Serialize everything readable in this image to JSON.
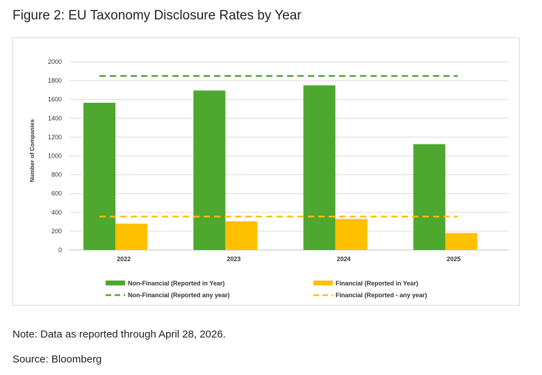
{
  "figure": {
    "title": "Figure 2: EU Taxonomy Disclosure Rates by Year",
    "note": "Note: Data as reported through April 28, 2026.",
    "source": "Source: Bloomberg"
  },
  "chart_data": {
    "type": "bar",
    "title": "",
    "xlabel": "",
    "ylabel": "Number of Companies",
    "ylim": [
      0,
      2000
    ],
    "yticks": [
      0,
      200,
      400,
      600,
      800,
      1000,
      1200,
      1400,
      1600,
      1800,
      2000
    ],
    "grid": true,
    "legend_position": "bottom",
    "categories": [
      "2022",
      "2023",
      "2024",
      "2025"
    ],
    "series": [
      {
        "name": "Non-Financial (Reported in Year)",
        "kind": "bar",
        "color": "#4ea72e",
        "values": [
          1565,
          1695,
          1750,
          1125
        ]
      },
      {
        "name": "Financial (Reported in Year)",
        "kind": "bar",
        "color": "#ffc000",
        "values": [
          280,
          305,
          330,
          180
        ]
      }
    ],
    "reference_lines": [
      {
        "name": "Non-Financial (Reported any year)",
        "kind": "dashed-line",
        "color": "#4ea72e",
        "value": 1850
      },
      {
        "name": "Financial (Reported - any year)",
        "kind": "dashed-line",
        "color": "#ffc000",
        "value": 355
      }
    ]
  }
}
